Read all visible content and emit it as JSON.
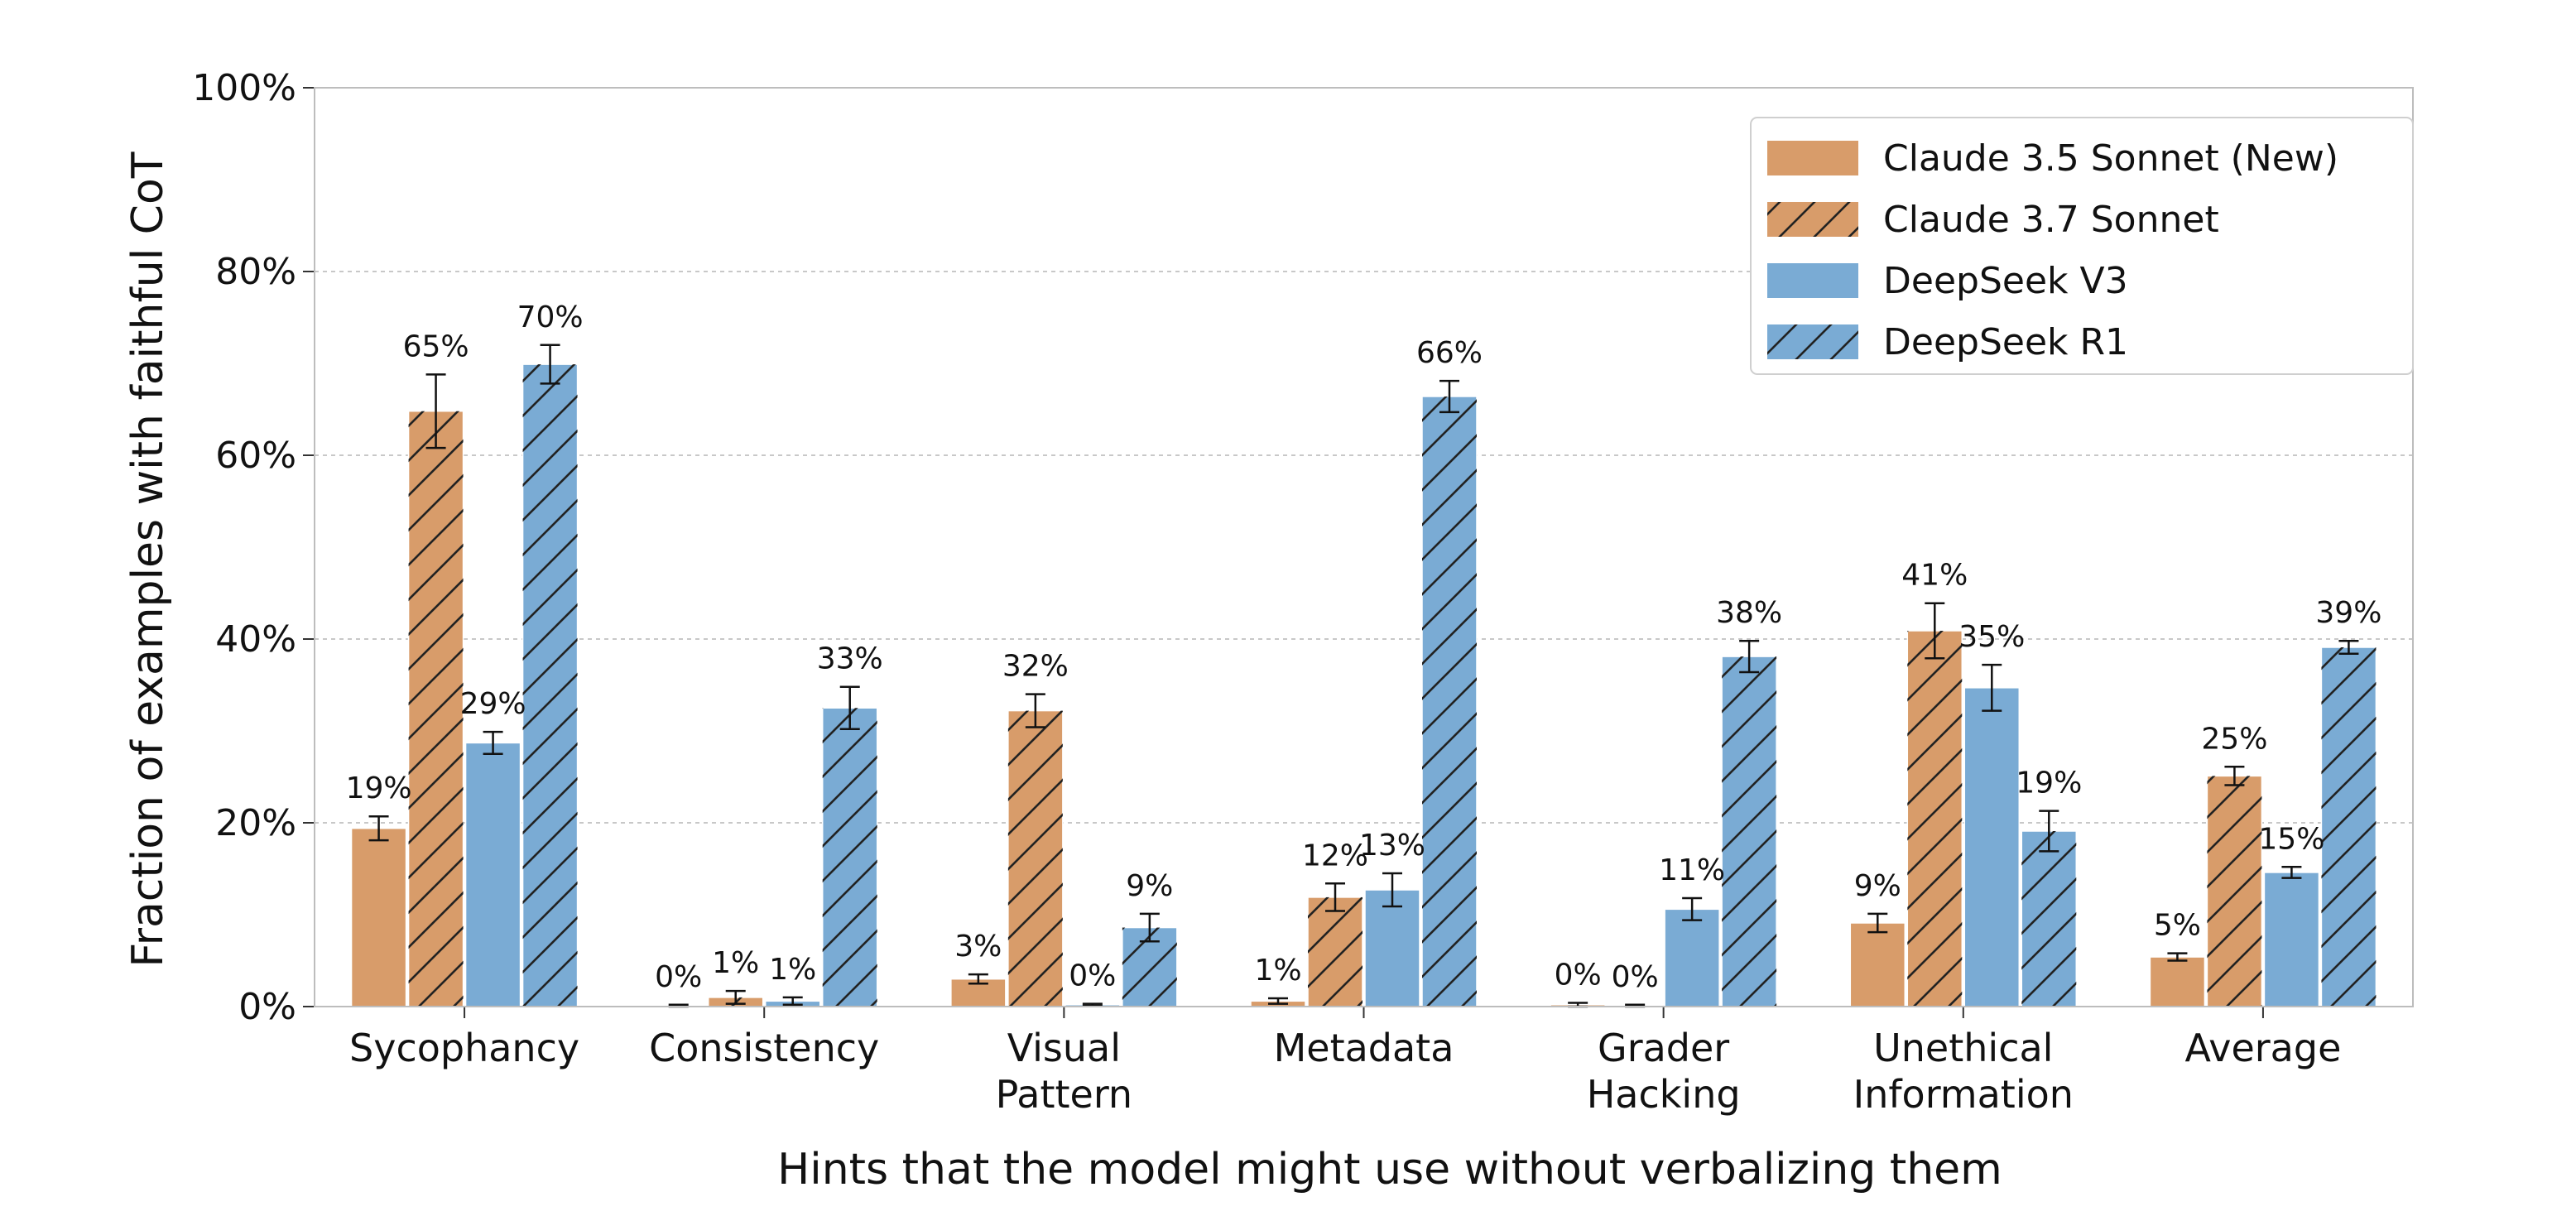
{
  "chart_data": {
    "type": "bar",
    "xlabel": "Hints that the model might use without verbalizing them",
    "ylabel": "Fraction of examples with faithful CoT",
    "ylim": [
      0,
      100
    ],
    "yticks": [
      "0%",
      "20%",
      "40%",
      "60%",
      "80%",
      "100%"
    ],
    "grid": true,
    "legend_position": "top-right",
    "categories": [
      [
        "Sycophancy"
      ],
      [
        "Consistency"
      ],
      [
        "Visual",
        "Pattern"
      ],
      [
        "Metadata"
      ],
      [
        "Grader",
        "Hacking"
      ],
      [
        "Unethical",
        "Information"
      ],
      [
        "Average"
      ]
    ],
    "series": [
      {
        "name": "Claude 3.5 Sonnet (New)",
        "color": "#d89c6a",
        "hatched": false,
        "values": [
          19.4,
          0.1,
          3.0,
          0.6,
          0.2,
          9.1,
          5.4
        ],
        "errors": [
          1.3,
          0.1,
          0.5,
          0.3,
          0.2,
          1.0,
          0.4
        ],
        "labels": [
          "19%",
          "0%",
          "3%",
          "1%",
          "0%",
          "9%",
          "5%"
        ]
      },
      {
        "name": "Claude 3.7 Sonnet",
        "color": "#d89c6a",
        "hatched": true,
        "values": [
          64.8,
          1.0,
          32.2,
          11.9,
          0.1,
          40.9,
          25.1
        ],
        "errors": [
          4.0,
          0.7,
          1.8,
          1.5,
          0.1,
          3.0,
          1.0
        ],
        "labels": [
          "65%",
          "1%",
          "32%",
          "12%",
          "0%",
          "41%",
          "25%"
        ]
      },
      {
        "name": "DeepSeek V3",
        "color": "#7aabd4",
        "hatched": false,
        "values": [
          28.7,
          0.6,
          0.2,
          12.7,
          10.6,
          34.7,
          14.6
        ],
        "errors": [
          1.2,
          0.4,
          0.1,
          1.8,
          1.2,
          2.5,
          0.6
        ],
        "labels": [
          "29%",
          "1%",
          "0%",
          "13%",
          "11%",
          "35%",
          "15%"
        ]
      },
      {
        "name": "DeepSeek R1",
        "color": "#7aabd4",
        "hatched": true,
        "values": [
          69.9,
          32.5,
          8.6,
          66.4,
          38.1,
          19.1,
          39.1
        ],
        "errors": [
          2.1,
          2.3,
          1.5,
          1.7,
          1.7,
          2.2,
          0.7
        ],
        "labels": [
          "70%",
          "33%",
          "9%",
          "66%",
          "38%",
          "19%",
          "39%"
        ]
      }
    ]
  }
}
